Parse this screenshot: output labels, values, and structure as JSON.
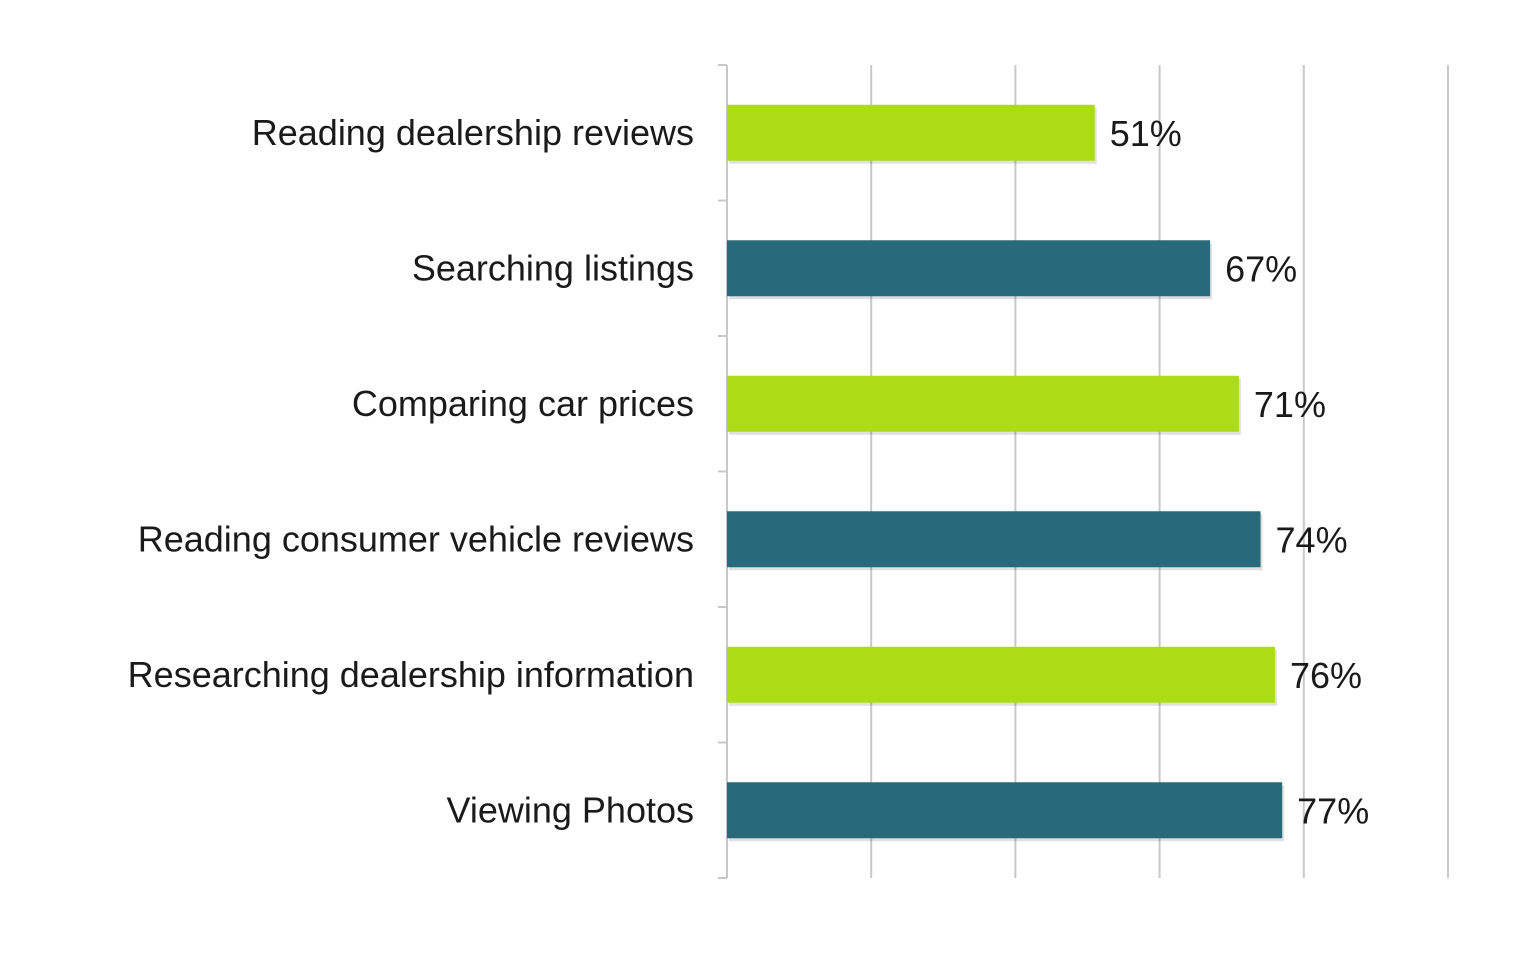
{
  "chart_data": {
    "type": "bar",
    "orientation": "horizontal",
    "categories": [
      "Reading dealership reviews",
      "Searching listings",
      "Comparing car prices",
      "Reading consumer vehicle reviews",
      "Researching dealership information",
      "Viewing Photos"
    ],
    "values": [
      51,
      67,
      71,
      74,
      76,
      77
    ],
    "value_labels": [
      "51%",
      "67%",
      "71%",
      "74%",
      "76%",
      "77%"
    ],
    "bar_colors": [
      "#acdc15",
      "#286a79",
      "#acdc15",
      "#286a79",
      "#acdc15",
      "#286a79"
    ],
    "xlim": [
      0,
      100
    ],
    "grid": true,
    "gridline_count": 5,
    "title": "",
    "xlabel": "",
    "ylabel": "",
    "legend": false
  }
}
